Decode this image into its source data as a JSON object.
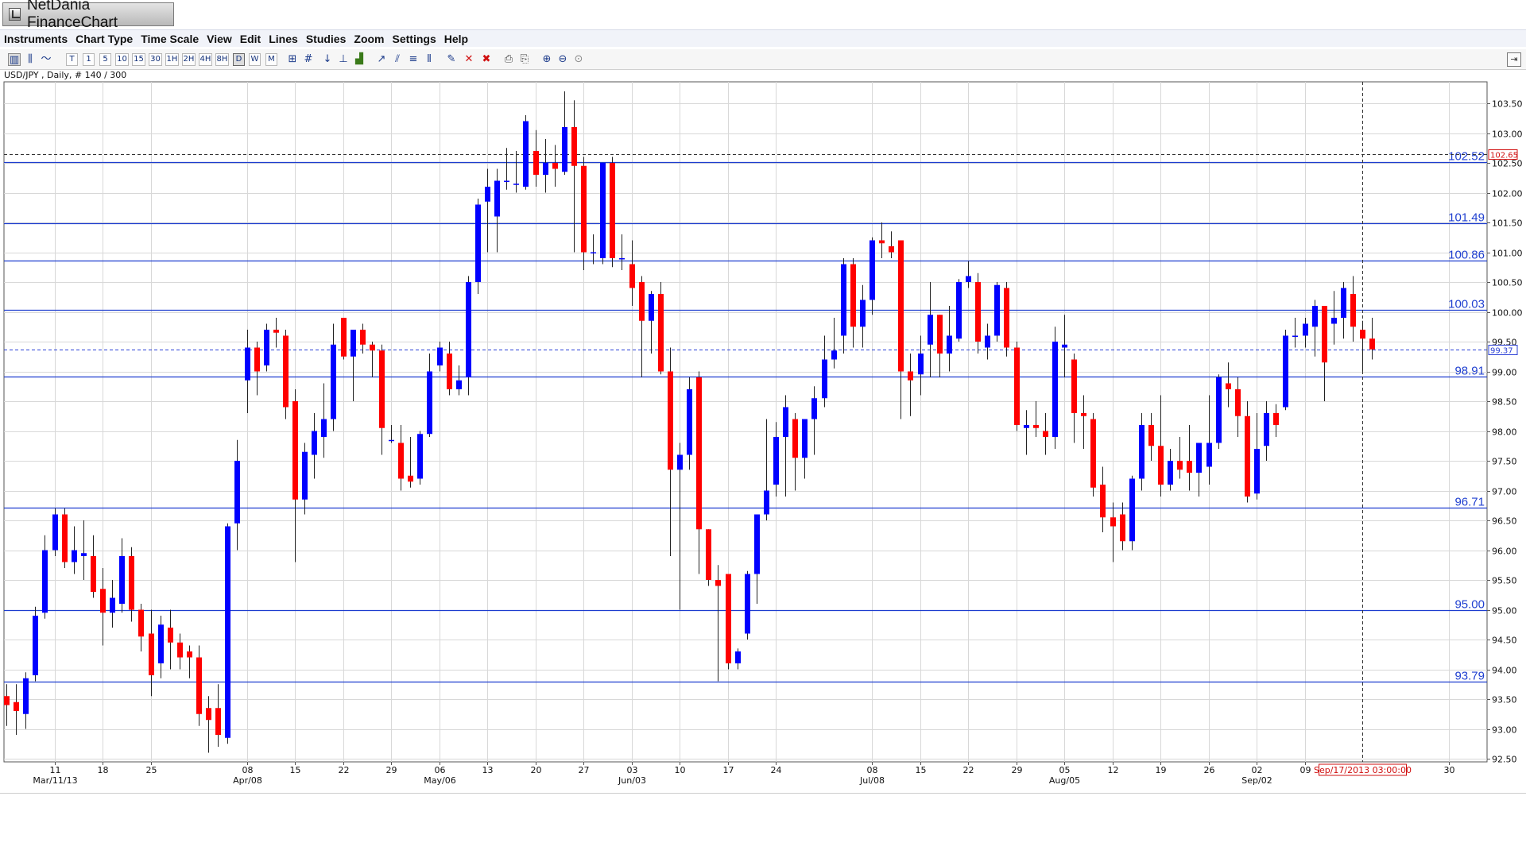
{
  "window": {
    "title": "NetDania FinanceChart"
  },
  "menu": [
    "Instruments",
    "Chart Type",
    "Time Scale",
    "View",
    "Edit",
    "Lines",
    "Studies",
    "Zoom",
    "Settings",
    "Help"
  ],
  "toolbar": {
    "timescale_buttons": [
      "T",
      "1",
      "5",
      "10",
      "15",
      "30",
      "1H",
      "2H",
      "4H",
      "8H",
      "D",
      "W",
      "M"
    ],
    "selected": "D"
  },
  "chart_info": "USD/JPY , Daily, # 140 / 300",
  "chart_data": {
    "type": "candlestick",
    "instrument": "USD/JPY",
    "period": "Daily",
    "ylim": [
      92.5,
      103.75
    ],
    "y_ticks": [
      "92.50",
      "93.00",
      "93.50",
      "94.00",
      "94.50",
      "95.00",
      "95.50",
      "96.00",
      "96.50",
      "97.00",
      "97.50",
      "98.00",
      "98.50",
      "99.00",
      "99.50",
      "100.00",
      "100.50",
      "101.00",
      "101.50",
      "102.00",
      "102.50",
      "103.00",
      "103.50"
    ],
    "x_ticks": [
      {
        "day": "11",
        "month": "Mar/11/13",
        "i": 0
      },
      {
        "day": "18",
        "i": 5
      },
      {
        "day": "25",
        "i": 10
      },
      {
        "day": "08",
        "month": "Apr/08",
        "i": 20
      },
      {
        "day": "15",
        "i": 25
      },
      {
        "day": "22",
        "i": 30
      },
      {
        "day": "29",
        "i": 35
      },
      {
        "day": "06",
        "month": "May/06",
        "i": 40
      },
      {
        "day": "13",
        "i": 45
      },
      {
        "day": "20",
        "i": 50
      },
      {
        "day": "27",
        "i": 55
      },
      {
        "day": "03",
        "month": "Jun/03",
        "i": 60
      },
      {
        "day": "10",
        "i": 65
      },
      {
        "day": "17",
        "i": 70
      },
      {
        "day": "24",
        "i": 75
      },
      {
        "day": "08",
        "month": "Jul/08",
        "i": 85
      },
      {
        "day": "15",
        "i": 90
      },
      {
        "day": "22",
        "i": 95
      },
      {
        "day": "29",
        "i": 100
      },
      {
        "day": "05",
        "month": "Aug/05",
        "i": 105
      },
      {
        "day": "12",
        "i": 110
      },
      {
        "day": "19",
        "i": 115
      },
      {
        "day": "26",
        "i": 120
      },
      {
        "day": "02",
        "month": "Sep/02",
        "i": 125
      },
      {
        "day": "09",
        "i": 130
      },
      {
        "day": "30",
        "i": 145
      }
    ],
    "start_index": -5,
    "end_index": 147,
    "support_resistance": [
      102.52,
      101.49,
      100.86,
      100.03,
      98.91,
      96.71,
      95.0,
      93.79
    ],
    "support_labels": [
      "102.52",
      "101.49",
      "100.86",
      "100.03",
      "98.91",
      "96.71",
      "95.00",
      "93.79"
    ],
    "last_price": 99.37,
    "last_price_label": "99.37",
    "bid_line": 102.65,
    "bid_label": "102.65",
    "cursor_label": "Sep/17/2013 03:00:00",
    "cursor_index": 136,
    "colors": {
      "up": "#0000ff",
      "down": "#ff0000",
      "line": "#1c3ccf",
      "grid": "#d8d8d8"
    },
    "candles": [
      {
        "i": -5,
        "o": 93.55,
        "h": 93.75,
        "l": 93.05,
        "c": 93.4
      },
      {
        "i": -4,
        "o": 93.45,
        "h": 93.75,
        "l": 92.9,
        "c": 93.3
      },
      {
        "i": -3,
        "o": 93.25,
        "h": 93.95,
        "l": 93.0,
        "c": 93.85
      },
      {
        "i": -2,
        "o": 93.9,
        "h": 95.05,
        "l": 93.8,
        "c": 94.9
      },
      {
        "i": -1,
        "o": 94.95,
        "h": 96.25,
        "l": 94.85,
        "c": 96.0
      },
      {
        "i": 0,
        "o": 96.0,
        "h": 96.7,
        "l": 95.9,
        "c": 96.6
      },
      {
        "i": 1,
        "o": 96.6,
        "h": 96.7,
        "l": 95.7,
        "c": 95.8
      },
      {
        "i": 2,
        "o": 95.8,
        "h": 96.4,
        "l": 95.6,
        "c": 96.0
      },
      {
        "i": 3,
        "o": 95.9,
        "h": 96.5,
        "l": 95.5,
        "c": 95.95
      },
      {
        "i": 4,
        "o": 95.9,
        "h": 96.25,
        "l": 95.2,
        "c": 95.3
      },
      {
        "i": 5,
        "o": 95.35,
        "h": 95.7,
        "l": 94.4,
        "c": 94.95
      },
      {
        "i": 6,
        "o": 94.95,
        "h": 95.5,
        "l": 94.7,
        "c": 95.2
      },
      {
        "i": 7,
        "o": 95.1,
        "h": 96.2,
        "l": 94.95,
        "c": 95.9
      },
      {
        "i": 8,
        "o": 95.9,
        "h": 96.05,
        "l": 94.8,
        "c": 95.0
      },
      {
        "i": 9,
        "o": 95.0,
        "h": 95.1,
        "l": 94.3,
        "c": 94.55
      },
      {
        "i": 10,
        "o": 94.6,
        "h": 95.0,
        "l": 93.55,
        "c": 93.9
      },
      {
        "i": 11,
        "o": 94.1,
        "h": 94.9,
        "l": 93.85,
        "c": 94.75
      },
      {
        "i": 12,
        "o": 94.7,
        "h": 95.0,
        "l": 94.0,
        "c": 94.45
      },
      {
        "i": 13,
        "o": 94.45,
        "h": 94.6,
        "l": 94.0,
        "c": 94.2
      },
      {
        "i": 14,
        "o": 94.3,
        "h": 94.4,
        "l": 93.85,
        "c": 94.2
      },
      {
        "i": 15,
        "o": 94.2,
        "h": 94.4,
        "l": 93.05,
        "c": 93.25
      },
      {
        "i": 16,
        "o": 93.35,
        "h": 93.55,
        "l": 92.6,
        "c": 93.15
      },
      {
        "i": 17,
        "o": 93.35,
        "h": 93.75,
        "l": 92.7,
        "c": 92.9
      },
      {
        "i": 18,
        "o": 92.85,
        "h": 96.45,
        "l": 92.75,
        "c": 96.4
      },
      {
        "i": 19,
        "o": 96.45,
        "h": 97.85,
        "l": 96.0,
        "c": 97.5
      },
      {
        "i": 20,
        "o": 98.85,
        "h": 99.7,
        "l": 98.3,
        "c": 99.4
      },
      {
        "i": 21,
        "o": 99.4,
        "h": 99.5,
        "l": 98.6,
        "c": 99.0
      },
      {
        "i": 22,
        "o": 99.1,
        "h": 99.8,
        "l": 99.0,
        "c": 99.7
      },
      {
        "i": 23,
        "o": 99.7,
        "h": 99.9,
        "l": 99.4,
        "c": 99.65
      },
      {
        "i": 24,
        "o": 99.6,
        "h": 99.7,
        "l": 98.2,
        "c": 98.4
      },
      {
        "i": 25,
        "o": 98.5,
        "h": 98.7,
        "l": 95.8,
        "c": 96.85
      },
      {
        "i": 26,
        "o": 96.85,
        "h": 97.8,
        "l": 96.6,
        "c": 97.65
      },
      {
        "i": 27,
        "o": 97.6,
        "h": 98.3,
        "l": 97.2,
        "c": 98.0
      },
      {
        "i": 28,
        "o": 97.9,
        "h": 98.8,
        "l": 97.55,
        "c": 98.2
      },
      {
        "i": 29,
        "o": 98.2,
        "h": 99.8,
        "l": 98.0,
        "c": 99.45
      },
      {
        "i": 30,
        "o": 99.9,
        "h": 99.9,
        "l": 99.2,
        "c": 99.25
      },
      {
        "i": 31,
        "o": 99.25,
        "h": 99.7,
        "l": 98.5,
        "c": 99.7
      },
      {
        "i": 32,
        "o": 99.7,
        "h": 99.8,
        "l": 99.3,
        "c": 99.45
      },
      {
        "i": 33,
        "o": 99.45,
        "h": 99.5,
        "l": 98.9,
        "c": 99.35
      },
      {
        "i": 34,
        "o": 99.35,
        "h": 99.45,
        "l": 97.6,
        "c": 98.05
      },
      {
        "i": 35,
        "o": 97.85,
        "h": 98.1,
        "l": 97.8,
        "c": 97.85
      },
      {
        "i": 36,
        "o": 97.8,
        "h": 98.1,
        "l": 97.0,
        "c": 97.2
      },
      {
        "i": 37,
        "o": 97.25,
        "h": 97.9,
        "l": 97.05,
        "c": 97.15
      },
      {
        "i": 38,
        "o": 97.2,
        "h": 98.0,
        "l": 97.1,
        "c": 97.95
      },
      {
        "i": 39,
        "o": 97.95,
        "h": 99.3,
        "l": 97.9,
        "c": 99.0
      },
      {
        "i": 40,
        "o": 99.1,
        "h": 99.5,
        "l": 99.0,
        "c": 99.4
      },
      {
        "i": 41,
        "o": 99.3,
        "h": 99.5,
        "l": 98.6,
        "c": 98.7
      },
      {
        "i": 42,
        "o": 98.7,
        "h": 99.1,
        "l": 98.6,
        "c": 98.85
      },
      {
        "i": 43,
        "o": 98.9,
        "h": 100.6,
        "l": 98.6,
        "c": 100.5
      },
      {
        "i": 44,
        "o": 100.5,
        "h": 101.9,
        "l": 100.3,
        "c": 101.8
      },
      {
        "i": 45,
        "o": 101.85,
        "h": 102.4,
        "l": 101.0,
        "c": 102.1
      },
      {
        "i": 46,
        "o": 101.6,
        "h": 102.4,
        "l": 101.0,
        "c": 102.2
      },
      {
        "i": 47,
        "o": 102.2,
        "h": 102.75,
        "l": 102.05,
        "c": 102.2
      },
      {
        "i": 48,
        "o": 102.15,
        "h": 102.7,
        "l": 102.0,
        "c": 102.15
      },
      {
        "i": 49,
        "o": 102.1,
        "h": 103.3,
        "l": 102.05,
        "c": 103.2
      },
      {
        "i": 50,
        "o": 102.7,
        "h": 103.05,
        "l": 102.1,
        "c": 102.3
      },
      {
        "i": 51,
        "o": 102.3,
        "h": 102.9,
        "l": 102.0,
        "c": 102.5
      },
      {
        "i": 52,
        "o": 102.5,
        "h": 102.8,
        "l": 102.1,
        "c": 102.4
      },
      {
        "i": 53,
        "o": 102.35,
        "h": 103.7,
        "l": 102.3,
        "c": 103.1
      },
      {
        "i": 54,
        "o": 103.1,
        "h": 103.55,
        "l": 101.0,
        "c": 102.45
      },
      {
        "i": 55,
        "o": 102.45,
        "h": 102.6,
        "l": 100.7,
        "c": 101.0
      },
      {
        "i": 56,
        "o": 101.0,
        "h": 101.3,
        "l": 100.8,
        "c": 101.0
      },
      {
        "i": 57,
        "o": 100.9,
        "h": 102.5,
        "l": 100.8,
        "c": 102.5
      },
      {
        "i": 58,
        "o": 102.5,
        "h": 102.6,
        "l": 100.75,
        "c": 100.9
      },
      {
        "i": 59,
        "o": 100.9,
        "h": 101.3,
        "l": 100.7,
        "c": 100.9
      },
      {
        "i": 60,
        "o": 100.8,
        "h": 101.2,
        "l": 100.1,
        "c": 100.4
      },
      {
        "i": 61,
        "o": 100.5,
        "h": 100.6,
        "l": 98.9,
        "c": 99.85
      },
      {
        "i": 62,
        "o": 99.85,
        "h": 100.35,
        "l": 99.3,
        "c": 100.3
      },
      {
        "i": 63,
        "o": 100.3,
        "h": 100.5,
        "l": 98.95,
        "c": 99.0
      },
      {
        "i": 64,
        "o": 99.0,
        "h": 99.4,
        "l": 95.9,
        "c": 97.35
      },
      {
        "i": 65,
        "o": 97.35,
        "h": 97.8,
        "l": 95.0,
        "c": 97.6
      },
      {
        "i": 66,
        "o": 97.6,
        "h": 98.9,
        "l": 97.35,
        "c": 98.7
      },
      {
        "i": 67,
        "o": 98.9,
        "h": 99.0,
        "l": 95.6,
        "c": 96.35
      },
      {
        "i": 68,
        "o": 96.35,
        "h": 96.35,
        "l": 95.4,
        "c": 95.5
      },
      {
        "i": 69,
        "o": 95.5,
        "h": 95.75,
        "l": 93.8,
        "c": 95.4
      },
      {
        "i": 70,
        "o": 95.6,
        "h": 95.6,
        "l": 94.0,
        "c": 94.1
      },
      {
        "i": 71,
        "o": 94.1,
        "h": 94.35,
        "l": 94.0,
        "c": 94.3
      },
      {
        "i": 72,
        "o": 94.6,
        "h": 95.65,
        "l": 94.5,
        "c": 95.6
      },
      {
        "i": 73,
        "o": 95.6,
        "h": 96.6,
        "l": 95.1,
        "c": 96.6
      },
      {
        "i": 74,
        "o": 96.6,
        "h": 98.2,
        "l": 96.5,
        "c": 97.0
      },
      {
        "i": 75,
        "o": 97.1,
        "h": 98.15,
        "l": 96.9,
        "c": 97.9
      },
      {
        "i": 76,
        "o": 97.9,
        "h": 98.6,
        "l": 96.9,
        "c": 98.4
      },
      {
        "i": 77,
        "o": 98.2,
        "h": 98.3,
        "l": 97.0,
        "c": 97.55
      },
      {
        "i": 78,
        "o": 97.55,
        "h": 98.1,
        "l": 97.2,
        "c": 98.2
      },
      {
        "i": 79,
        "o": 98.2,
        "h": 98.75,
        "l": 97.6,
        "c": 98.55
      },
      {
        "i": 80,
        "o": 98.55,
        "h": 99.6,
        "l": 98.4,
        "c": 99.2
      },
      {
        "i": 81,
        "o": 99.2,
        "h": 99.9,
        "l": 99.05,
        "c": 99.35
      },
      {
        "i": 82,
        "o": 99.6,
        "h": 100.9,
        "l": 99.3,
        "c": 100.8
      },
      {
        "i": 83,
        "o": 100.8,
        "h": 100.9,
        "l": 99.4,
        "c": 99.75
      },
      {
        "i": 84,
        "o": 99.75,
        "h": 100.45,
        "l": 99.4,
        "c": 100.2
      },
      {
        "i": 85,
        "o": 100.2,
        "h": 101.25,
        "l": 99.95,
        "c": 101.2
      },
      {
        "i": 86,
        "o": 101.2,
        "h": 101.5,
        "l": 100.9,
        "c": 101.15
      },
      {
        "i": 87,
        "o": 101.1,
        "h": 101.35,
        "l": 100.9,
        "c": 101.0
      },
      {
        "i": 88,
        "o": 101.2,
        "h": 101.2,
        "l": 98.2,
        "c": 99.0
      },
      {
        "i": 89,
        "o": 99.0,
        "h": 99.3,
        "l": 98.25,
        "c": 98.85
      },
      {
        "i": 90,
        "o": 98.95,
        "h": 99.6,
        "l": 98.6,
        "c": 99.3
      },
      {
        "i": 91,
        "o": 99.45,
        "h": 100.5,
        "l": 98.9,
        "c": 99.95
      },
      {
        "i": 92,
        "o": 99.95,
        "h": 99.95,
        "l": 98.9,
        "c": 99.3
      },
      {
        "i": 93,
        "o": 99.3,
        "h": 100.1,
        "l": 99.0,
        "c": 99.6
      },
      {
        "i": 94,
        "o": 99.55,
        "h": 100.55,
        "l": 99.5,
        "c": 100.5
      },
      {
        "i": 95,
        "o": 100.5,
        "h": 100.85,
        "l": 100.4,
        "c": 100.6
      },
      {
        "i": 96,
        "o": 100.5,
        "h": 100.65,
        "l": 99.3,
        "c": 99.5
      },
      {
        "i": 97,
        "o": 99.4,
        "h": 99.8,
        "l": 99.2,
        "c": 99.6
      },
      {
        "i": 98,
        "o": 99.6,
        "h": 100.5,
        "l": 99.5,
        "c": 100.45
      },
      {
        "i": 99,
        "o": 100.4,
        "h": 100.5,
        "l": 99.25,
        "c": 99.4
      },
      {
        "i": 100,
        "o": 99.4,
        "h": 99.5,
        "l": 98.0,
        "c": 98.1
      },
      {
        "i": 101,
        "o": 98.05,
        "h": 98.35,
        "l": 97.6,
        "c": 98.1
      },
      {
        "i": 102,
        "o": 98.1,
        "h": 98.5,
        "l": 97.9,
        "c": 98.05
      },
      {
        "i": 103,
        "o": 98.0,
        "h": 98.3,
        "l": 97.6,
        "c": 97.9
      },
      {
        "i": 104,
        "o": 97.9,
        "h": 99.75,
        "l": 97.7,
        "c": 99.5
      },
      {
        "i": 105,
        "o": 99.4,
        "h": 99.95,
        "l": 98.9,
        "c": 99.45
      },
      {
        "i": 106,
        "o": 99.2,
        "h": 99.3,
        "l": 97.8,
        "c": 98.3
      },
      {
        "i": 107,
        "o": 98.3,
        "h": 98.6,
        "l": 97.7,
        "c": 98.25
      },
      {
        "i": 108,
        "o": 98.2,
        "h": 98.3,
        "l": 96.9,
        "c": 97.05
      },
      {
        "i": 109,
        "o": 97.1,
        "h": 97.4,
        "l": 96.3,
        "c": 96.55
      },
      {
        "i": 110,
        "o": 96.55,
        "h": 96.8,
        "l": 95.8,
        "c": 96.4
      },
      {
        "i": 111,
        "o": 96.6,
        "h": 96.8,
        "l": 96.0,
        "c": 96.15
      },
      {
        "i": 112,
        "o": 96.15,
        "h": 97.25,
        "l": 96.0,
        "c": 97.2
      },
      {
        "i": 113,
        "o": 97.2,
        "h": 98.3,
        "l": 97.0,
        "c": 98.1
      },
      {
        "i": 114,
        "o": 98.1,
        "h": 98.3,
        "l": 97.5,
        "c": 97.75
      },
      {
        "i": 115,
        "o": 97.75,
        "h": 98.6,
        "l": 96.9,
        "c": 97.1
      },
      {
        "i": 116,
        "o": 97.1,
        "h": 97.7,
        "l": 97.0,
        "c": 97.5
      },
      {
        "i": 117,
        "o": 97.5,
        "h": 97.9,
        "l": 97.2,
        "c": 97.35
      },
      {
        "i": 118,
        "o": 97.5,
        "h": 98.1,
        "l": 97.0,
        "c": 97.3
      },
      {
        "i": 119,
        "o": 97.3,
        "h": 97.8,
        "l": 96.9,
        "c": 97.8
      },
      {
        "i": 120,
        "o": 97.4,
        "h": 98.6,
        "l": 97.1,
        "c": 97.8
      },
      {
        "i": 121,
        "o": 97.8,
        "h": 98.95,
        "l": 97.7,
        "c": 98.9
      },
      {
        "i": 122,
        "o": 98.8,
        "h": 99.15,
        "l": 98.4,
        "c": 98.7
      },
      {
        "i": 123,
        "o": 98.7,
        "h": 98.9,
        "l": 97.9,
        "c": 98.25
      },
      {
        "i": 124,
        "o": 98.25,
        "h": 98.5,
        "l": 96.8,
        "c": 96.9
      },
      {
        "i": 125,
        "o": 96.95,
        "h": 98.3,
        "l": 96.85,
        "c": 97.7
      },
      {
        "i": 126,
        "o": 97.75,
        "h": 98.5,
        "l": 97.5,
        "c": 98.3
      },
      {
        "i": 127,
        "o": 98.3,
        "h": 98.45,
        "l": 97.9,
        "c": 98.1
      },
      {
        "i": 128,
        "o": 98.4,
        "h": 99.7,
        "l": 98.35,
        "c": 99.6
      },
      {
        "i": 129,
        "o": 99.6,
        "h": 99.9,
        "l": 99.4,
        "c": 99.6
      },
      {
        "i": 130,
        "o": 99.6,
        "h": 99.9,
        "l": 99.4,
        "c": 99.8
      },
      {
        "i": 131,
        "o": 99.75,
        "h": 100.2,
        "l": 99.25,
        "c": 100.1
      },
      {
        "i": 132,
        "o": 100.1,
        "h": 100.1,
        "l": 98.5,
        "c": 99.15
      },
      {
        "i": 133,
        "o": 99.8,
        "h": 100.35,
        "l": 99.45,
        "c": 99.9
      },
      {
        "i": 134,
        "o": 99.9,
        "h": 100.5,
        "l": 99.55,
        "c": 100.4
      },
      {
        "i": 135,
        "o": 100.3,
        "h": 100.6,
        "l": 99.5,
        "c": 99.75
      },
      {
        "i": 136,
        "o": 99.7,
        "h": 99.85,
        "l": 99.0,
        "c": 99.55
      },
      {
        "i": 137,
        "o": 99.55,
        "h": 99.9,
        "l": 99.2,
        "c": 99.37
      }
    ]
  }
}
